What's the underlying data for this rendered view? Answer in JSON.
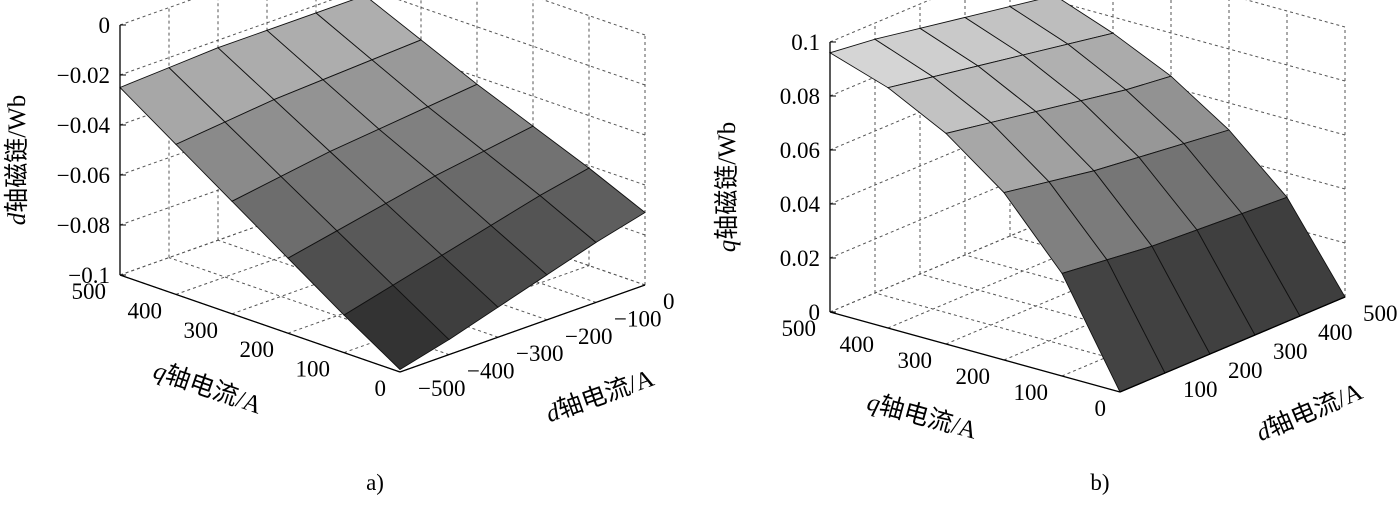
{
  "chart_data": [
    {
      "type": "surface",
      "panel_label": "a)",
      "xlabel": "d 轴电流/A",
      "xlabel_italic": "d",
      "xlabel_rest": "轴电流/A",
      "ylabel": "q 轴电流/A",
      "ylabel_italic": "q",
      "ylabel_rest": "轴电流/A",
      "zlabel": "d 轴磁链/Wb",
      "zlabel_italic": "d",
      "zlabel_rest": "轴磁链/Wb",
      "x_ticks": [
        "0",
        "−100",
        "−200",
        "−300",
        "−400",
        "−500"
      ],
      "x_tick_values": [
        0,
        -100,
        -200,
        -300,
        -400,
        -500
      ],
      "y_ticks": [
        "0",
        "100",
        "200",
        "300",
        "400",
        "500"
      ],
      "y_tick_values": [
        0,
        100,
        200,
        300,
        400,
        500
      ],
      "z_ticks": [
        "0",
        "−0.02",
        "−0.04",
        "−0.06",
        "−0.08",
        "−0.1"
      ],
      "z_tick_values": [
        0,
        -0.02,
        -0.04,
        -0.06,
        -0.08,
        -0.1
      ],
      "xlim": [
        -500,
        0
      ],
      "ylim": [
        0,
        500
      ],
      "zlim": [
        -0.1,
        0
      ],
      "grid": true,
      "colormap": "gray",
      "x": [
        -500,
        -400,
        -300,
        -200,
        -100,
        0
      ],
      "y": [
        0,
        100,
        200,
        300,
        400,
        500
      ],
      "z": [
        [
          -0.099,
          -0.094,
          -0.088,
          -0.082,
          -0.076,
          -0.071
        ],
        [
          -0.085,
          -0.08,
          -0.075,
          -0.07,
          -0.065,
          -0.061
        ],
        [
          -0.07,
          -0.066,
          -0.062,
          -0.058,
          -0.055,
          -0.052
        ],
        [
          -0.055,
          -0.052,
          -0.049,
          -0.047,
          -0.045,
          -0.043
        ],
        [
          -0.04,
          -0.038,
          -0.036,
          -0.035,
          -0.034,
          -0.033
        ],
        [
          -0.025,
          -0.024,
          -0.023,
          -0.023,
          -0.023,
          -0.023
        ]
      ]
    },
    {
      "type": "surface",
      "panel_label": "b)",
      "xlabel": "d 轴电流/A",
      "xlabel_italic": "d",
      "xlabel_rest": "轴电流/A",
      "ylabel": "q 轴电流/A",
      "ylabel_italic": "q",
      "ylabel_rest": "轴电流/A",
      "zlabel": "q 轴磁链/Wb",
      "zlabel_italic": "q",
      "zlabel_rest": "轴磁链/Wb",
      "x_ticks": [
        "100",
        "200",
        "300",
        "400",
        "500"
      ],
      "x_tick_values": [
        100,
        200,
        300,
        400,
        500
      ],
      "y_ticks": [
        "0",
        "100",
        "200",
        "300",
        "400",
        "500"
      ],
      "y_tick_values": [
        0,
        100,
        200,
        300,
        400,
        500
      ],
      "z_ticks": [
        "0",
        "0.02",
        "0.04",
        "0.06",
        "0.08",
        "0.1"
      ],
      "z_tick_values": [
        0,
        0.02,
        0.04,
        0.06,
        0.08,
        0.1
      ],
      "xlim": [
        0,
        500
      ],
      "ylim": [
        0,
        500
      ],
      "zlim": [
        0,
        0.1
      ],
      "grid": true,
      "colormap": "gray",
      "x": [
        0,
        100,
        200,
        300,
        400,
        500
      ],
      "y": [
        0,
        100,
        200,
        300,
        400,
        500
      ],
      "z": [
        [
          0.0,
          0.0,
          0.0,
          0.0,
          0.0,
          0.0
        ],
        [
          0.038,
          0.036,
          0.034,
          0.033,
          0.032,
          0.031
        ],
        [
          0.062,
          0.059,
          0.056,
          0.054,
          0.052,
          0.05
        ],
        [
          0.078,
          0.075,
          0.072,
          0.069,
          0.066,
          0.064
        ],
        [
          0.089,
          0.086,
          0.083,
          0.08,
          0.077,
          0.074
        ],
        [
          0.096,
          0.094,
          0.091,
          0.088,
          0.085,
          0.082
        ]
      ]
    }
  ]
}
